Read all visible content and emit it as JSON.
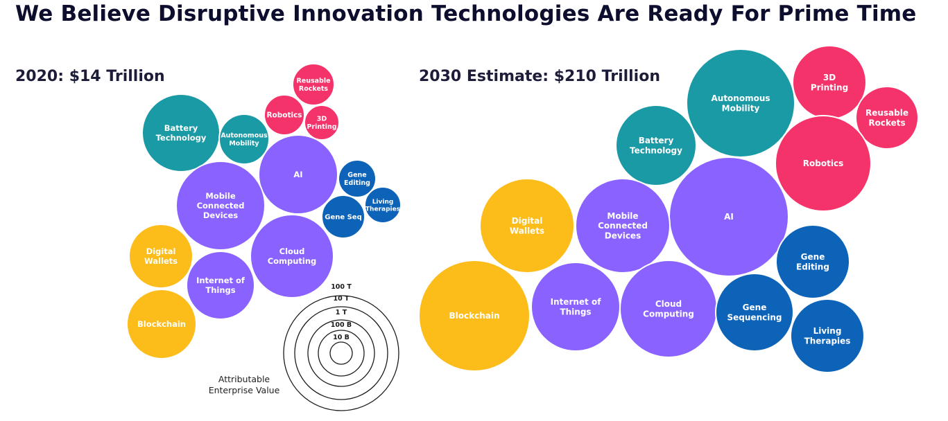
{
  "title": "We Believe Disruptive Innovation Technologies Are Ready For Prime Time",
  "colors": {
    "teal": "#1a9aa5",
    "pink": "#f5336b",
    "purple": "#8a62ff",
    "blue": "#0d63b8",
    "yellow": "#fcbc1a"
  },
  "chart_data": [
    {
      "type": "bubble",
      "title": "2020: $14 Trillion",
      "bubbles": [
        {
          "label": [
            "Battery",
            "Technology"
          ],
          "color": "teal"
        },
        {
          "label": [
            "Autonomous",
            "Mobility"
          ],
          "color": "teal"
        },
        {
          "label": [
            "Robotics"
          ],
          "color": "pink"
        },
        {
          "label": [
            "Reusable",
            "Rockets"
          ],
          "color": "pink"
        },
        {
          "label": [
            "3D",
            "Printing"
          ],
          "color": "pink"
        },
        {
          "label": [
            "AI"
          ],
          "color": "purple"
        },
        {
          "label": [
            "Mobile",
            "Connected",
            "Devices"
          ],
          "color": "purple"
        },
        {
          "label": [
            "Cloud",
            "Computing"
          ],
          "color": "purple"
        },
        {
          "label": [
            "Internet of",
            "Things"
          ],
          "color": "purple"
        },
        {
          "label": [
            "Gene",
            "Editing"
          ],
          "color": "blue"
        },
        {
          "label": [
            "Living",
            "Therapies"
          ],
          "color": "blue"
        },
        {
          "label": [
            "Gene Seq"
          ],
          "color": "blue"
        },
        {
          "label": [
            "Digital",
            "Wallets"
          ],
          "color": "yellow"
        },
        {
          "label": [
            "Blockchain"
          ],
          "color": "yellow"
        }
      ]
    },
    {
      "type": "bubble",
      "title": "2030 Estimate: $210 Trillion",
      "bubbles": [
        {
          "label": [
            "Autonomous",
            "Mobility"
          ],
          "color": "teal"
        },
        {
          "label": [
            "Battery",
            "Technology"
          ],
          "color": "teal"
        },
        {
          "label": [
            "3D",
            "Printing"
          ],
          "color": "pink"
        },
        {
          "label": [
            "Reusable",
            "Rockets"
          ],
          "color": "pink"
        },
        {
          "label": [
            "Robotics"
          ],
          "color": "pink"
        },
        {
          "label": [
            "AI"
          ],
          "color": "purple"
        },
        {
          "label": [
            "Mobile",
            "Connected",
            "Devices"
          ],
          "color": "purple"
        },
        {
          "label": [
            "Digital",
            "Wallets"
          ],
          "color": "yellow"
        },
        {
          "label": [
            "Blockchain"
          ],
          "color": "yellow"
        },
        {
          "label": [
            "Internet of",
            "Things"
          ],
          "color": "purple"
        },
        {
          "label": [
            "Cloud",
            "Computing"
          ],
          "color": "purple"
        },
        {
          "label": [
            "Gene",
            "Editing"
          ],
          "color": "blue"
        },
        {
          "label": [
            "Gene",
            "Sequencing"
          ],
          "color": "blue"
        },
        {
          "label": [
            "Living",
            "Therapies"
          ],
          "color": "blue"
        }
      ]
    }
  ],
  "legend": {
    "rings": [
      "100 T",
      "10 T",
      "1 T",
      "100 B",
      "10 B"
    ],
    "caption": [
      "Attributable",
      "Enterprise Value"
    ]
  }
}
